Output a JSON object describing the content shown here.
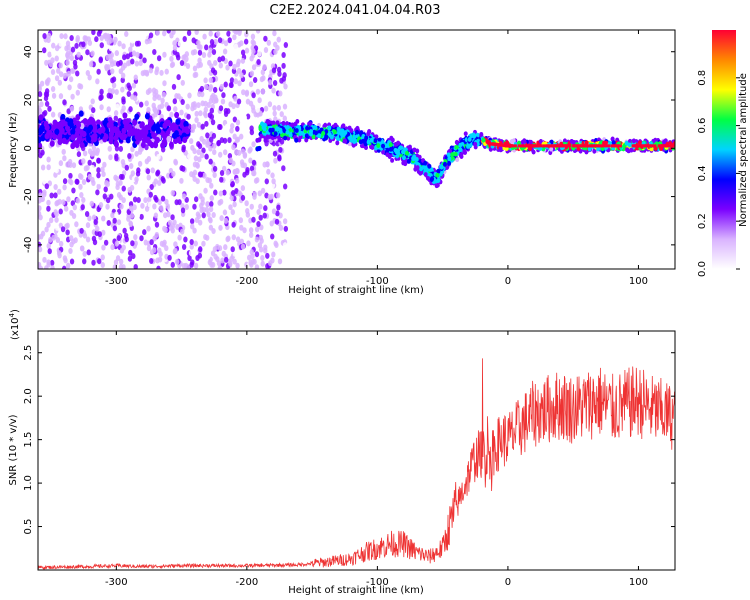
{
  "title": "C2E2.2024.041.04.04.R03",
  "chart_data": [
    {
      "type": "heatmap",
      "xlabel": "Height of straight line (km)",
      "ylabel": "Frequency (Hz)",
      "xlim": [
        -360,
        128
      ],
      "ylim": [
        -50,
        49
      ],
      "xticks": [
        -300,
        -200,
        -100,
        0,
        100
      ],
      "yticks": [
        -40,
        -20,
        0,
        20,
        40
      ],
      "colorbar": {
        "label": "Normalized spectral amplitude",
        "range": [
          0,
          1
        ],
        "ticks": [
          "0.0",
          "0.2",
          "0.4",
          "0.6",
          "0.8"
        ],
        "colors": [
          "#ffffff",
          "#d9b3ff",
          "#7a00ff",
          "#0000ff",
          "#00d4ff",
          "#00ff44",
          "#ffff00",
          "#ff8800",
          "#ff0033"
        ]
      },
      "ridge": [
        {
          "x": -190,
          "y": 8
        },
        {
          "x": -170,
          "y": 7
        },
        {
          "x": -150,
          "y": 7
        },
        {
          "x": -130,
          "y": 6
        },
        {
          "x": -110,
          "y": 4
        },
        {
          "x": -90,
          "y": 0
        },
        {
          "x": -75,
          "y": -3
        },
        {
          "x": -62,
          "y": -9
        },
        {
          "x": -55,
          "y": -13
        },
        {
          "x": -45,
          "y": -4
        },
        {
          "x": -35,
          "y": 1
        },
        {
          "x": -25,
          "y": 4
        },
        {
          "x": -15,
          "y": 2
        },
        {
          "x": 0,
          "y": 1
        },
        {
          "x": 30,
          "y": 1
        },
        {
          "x": 60,
          "y": 1
        },
        {
          "x": 90,
          "y": 1
        },
        {
          "x": 128,
          "y": 1
        }
      ]
    },
    {
      "type": "line",
      "xlabel": "Height of straight line (km)",
      "ylabel": "SNR (10 * v/v)",
      "yscale_label": "(x10",
      "yscale_exp": "4",
      "xlim": [
        -360,
        128
      ],
      "ylim": [
        0,
        2.75
      ],
      "xticks": [
        -300,
        -200,
        -100,
        0,
        100
      ],
      "yticks": [
        0.5,
        1.0,
        1.5,
        2.0,
        2.5
      ],
      "ytick_labels": [
        "0.5",
        "1.0",
        "1.5",
        "2.0",
        "2.5"
      ],
      "color": "#ee3333",
      "series": [
        {
          "x": [
            -360,
            -320,
            -300,
            -280,
            -250,
            -200,
            -160,
            -140,
            -120,
            -110,
            -100,
            -90,
            -80,
            -70,
            -60,
            -50,
            -45,
            -40,
            -35,
            -30,
            -25,
            -20,
            -15,
            -10,
            -5,
            0,
            10,
            20,
            30,
            40,
            50,
            60,
            70,
            80,
            90,
            100,
            110,
            120,
            128
          ],
          "y": [
            0.03,
            0.04,
            0.05,
            0.04,
            0.05,
            0.05,
            0.06,
            0.09,
            0.13,
            0.2,
            0.25,
            0.3,
            0.3,
            0.2,
            0.15,
            0.25,
            0.5,
            0.7,
            0.9,
            1.1,
            1.3,
            1.35,
            1.3,
            1.4,
            1.5,
            1.5,
            1.65,
            1.8,
            1.85,
            1.9,
            1.85,
            1.9,
            1.95,
            1.85,
            1.9,
            1.95,
            1.85,
            1.8,
            1.75
          ]
        }
      ]
    }
  ]
}
